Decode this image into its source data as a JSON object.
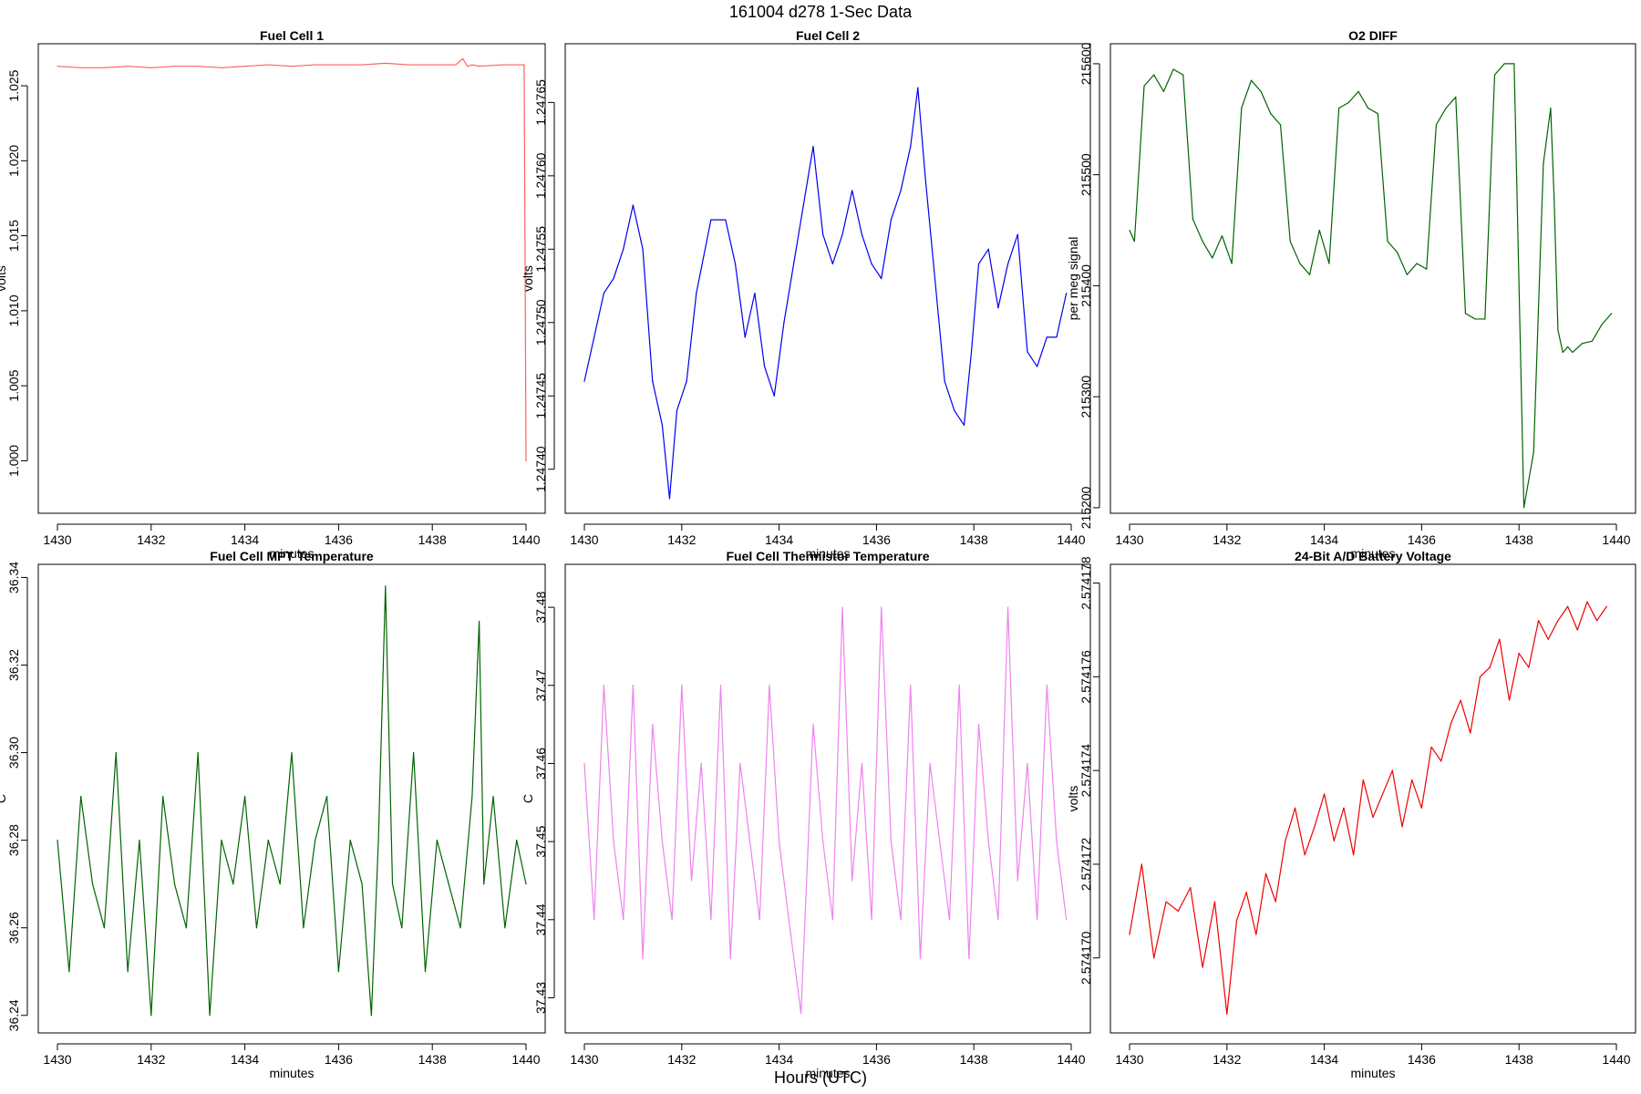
{
  "figure": {
    "title": "161004   d278   1-Sec Data",
    "xlabel": "Hours (UTC)"
  },
  "chart_data": [
    {
      "type": "line",
      "title": "Fuel Cell 1",
      "xlabel": "minutes",
      "ylabel": "volts",
      "color": "#ff6060",
      "xlim": [
        1430,
        1440
      ],
      "ylim": [
        0.9965,
        1.0278
      ],
      "xticks": [
        "1430",
        "1432",
        "1434",
        "1436",
        "1438",
        "1440"
      ],
      "yticks": [
        {
          "v": 1.0,
          "label": "1.000"
        },
        {
          "v": 1.005,
          "label": "1.005"
        },
        {
          "v": 1.01,
          "label": "1.010"
        },
        {
          "v": 1.015,
          "label": "1.015"
        },
        {
          "v": 1.02,
          "label": "1.020"
        },
        {
          "v": 1.025,
          "label": "1.025"
        }
      ],
      "series": [
        {
          "x": [
            1430.0,
            1430.5,
            1431.0,
            1431.5,
            1432.0,
            1432.5,
            1433.0,
            1433.5,
            1434.0,
            1434.5,
            1435.0,
            1435.5,
            1436.0,
            1436.5,
            1437.0,
            1437.5,
            1438.0,
            1438.5,
            1438.65,
            1438.75,
            1438.85,
            1439.0,
            1439.5,
            1439.9,
            1439.93,
            1439.96,
            1440.0
          ],
          "values": [
            1.0263,
            1.0262,
            1.0262,
            1.0263,
            1.0262,
            1.0263,
            1.0263,
            1.0262,
            1.0263,
            1.0264,
            1.0263,
            1.0264,
            1.0264,
            1.0264,
            1.0265,
            1.0264,
            1.0264,
            1.0264,
            1.0268,
            1.0263,
            1.0264,
            1.0263,
            1.0264,
            1.0264,
            1.0264,
            1.0264,
            1.0
          ]
        }
      ]
    },
    {
      "type": "line",
      "title": "Fuel Cell 2",
      "xlabel": "minutes",
      "ylabel": "volts",
      "color": "#0000ee",
      "xlim": [
        1430,
        1440
      ],
      "ylim": [
        1.24737,
        1.24769
      ],
      "xticks": [
        "1430",
        "1432",
        "1434",
        "1436",
        "1438",
        "1440"
      ],
      "yticks": [
        {
          "v": 1.2474,
          "label": "1.24740"
        },
        {
          "v": 1.24745,
          "label": "1.24745"
        },
        {
          "v": 1.2475,
          "label": "1.24750"
        },
        {
          "v": 1.24755,
          "label": "1.24755"
        },
        {
          "v": 1.2476,
          "label": "1.24760"
        },
        {
          "v": 1.24765,
          "label": "1.24765"
        }
      ],
      "series": [
        {
          "x": [
            1430.0,
            1430.2,
            1430.4,
            1430.6,
            1430.8,
            1431.0,
            1431.2,
            1431.4,
            1431.6,
            1431.75,
            1431.9,
            1432.1,
            1432.3,
            1432.6,
            1432.9,
            1433.1,
            1433.3,
            1433.5,
            1433.7,
            1433.9,
            1434.1,
            1434.3,
            1434.5,
            1434.7,
            1434.9,
            1435.1,
            1435.3,
            1435.5,
            1435.7,
            1435.9,
            1436.1,
            1436.3,
            1436.5,
            1436.7,
            1436.85,
            1437.0,
            1437.2,
            1437.4,
            1437.6,
            1437.8,
            1437.95,
            1438.1,
            1438.3,
            1438.5,
            1438.7,
            1438.9,
            1439.1,
            1439.3,
            1439.5,
            1439.7,
            1439.9
          ],
          "values": [
            1.24746,
            1.24749,
            1.24752,
            1.24753,
            1.24755,
            1.24758,
            1.24755,
            1.24746,
            1.24743,
            1.24738,
            1.24744,
            1.24746,
            1.24752,
            1.24757,
            1.24757,
            1.24754,
            1.24749,
            1.24752,
            1.24747,
            1.24745,
            1.2475,
            1.24754,
            1.24758,
            1.24762,
            1.24756,
            1.24754,
            1.24756,
            1.24759,
            1.24756,
            1.24754,
            1.24753,
            1.24757,
            1.24759,
            1.24762,
            1.24766,
            1.2476,
            1.24753,
            1.24746,
            1.24744,
            1.24743,
            1.24748,
            1.24754,
            1.24755,
            1.24751,
            1.24754,
            1.24756,
            1.24748,
            1.24747,
            1.24749,
            1.24749,
            1.24752
          ]
        }
      ]
    },
    {
      "type": "line",
      "title": "O2 DIFF",
      "xlabel": "minutes",
      "ylabel": "per meg signal",
      "color": "#006400",
      "xlim": [
        1430,
        1440
      ],
      "ylim": [
        215195,
        215618
      ],
      "xticks": [
        "1430",
        "1432",
        "1434",
        "1436",
        "1438",
        "1440"
      ],
      "yticks": [
        {
          "v": 215200,
          "label": "215200"
        },
        {
          "v": 215300,
          "label": "215300"
        },
        {
          "v": 215400,
          "label": "215400"
        },
        {
          "v": 215500,
          "label": "215500"
        },
        {
          "v": 215600,
          "label": "215600"
        }
      ],
      "series": [
        {
          "x": [
            1430.0,
            1430.1,
            1430.2,
            1430.3,
            1430.5,
            1430.7,
            1430.9,
            1431.1,
            1431.3,
            1431.5,
            1431.7,
            1431.9,
            1432.1,
            1432.3,
            1432.5,
            1432.7,
            1432.9,
            1433.1,
            1433.3,
            1433.5,
            1433.7,
            1433.9,
            1434.1,
            1434.3,
            1434.5,
            1434.7,
            1434.9,
            1435.1,
            1435.3,
            1435.5,
            1435.7,
            1435.9,
            1436.1,
            1436.3,
            1436.5,
            1436.7,
            1436.9,
            1437.1,
            1437.3,
            1437.5,
            1437.7,
            1437.9,
            1438.1,
            1438.3,
            1438.5,
            1438.65,
            1438.72,
            1438.8,
            1438.9,
            1439.0,
            1439.1,
            1439.3,
            1439.5,
            1439.7,
            1439.9
          ],
          "values": [
            215450,
            215440,
            215510,
            215580,
            215590,
            215575,
            215595,
            215590,
            215460,
            215440,
            215425,
            215445,
            215420,
            215560,
            215585,
            215575,
            215555,
            215545,
            215440,
            215420,
            215410,
            215450,
            215420,
            215560,
            215565,
            215575,
            215560,
            215555,
            215440,
            215430,
            215410,
            215420,
            215415,
            215545,
            215560,
            215570,
            215375,
            215370,
            215370,
            215590,
            215600,
            215600,
            215200,
            215250,
            215510,
            215560,
            215480,
            215360,
            215340,
            215345,
            215340,
            215348,
            215350,
            215365,
            215375
          ]
        }
      ]
    },
    {
      "type": "line",
      "title": "Fuel Cell MPT Temperature",
      "xlabel": "minutes",
      "ylabel": "C",
      "color": "#006400",
      "xlim": [
        1430,
        1440
      ],
      "ylim": [
        36.236,
        36.343
      ],
      "xticks": [
        "1430",
        "1432",
        "1434",
        "1436",
        "1438",
        "1440"
      ],
      "yticks": [
        {
          "v": 36.24,
          "label": "36.24"
        },
        {
          "v": 36.26,
          "label": "36.26"
        },
        {
          "v": 36.28,
          "label": "36.28"
        },
        {
          "v": 36.3,
          "label": "36.30"
        },
        {
          "v": 36.32,
          "label": "36.32"
        },
        {
          "v": 36.34,
          "label": "36.34"
        }
      ],
      "series": [
        {
          "x": [
            1430.0,
            1430.25,
            1430.5,
            1430.75,
            1431.0,
            1431.25,
            1431.5,
            1431.75,
            1432.0,
            1432.25,
            1432.5,
            1432.75,
            1433.0,
            1433.25,
            1433.5,
            1433.75,
            1434.0,
            1434.25,
            1434.5,
            1434.75,
            1435.0,
            1435.25,
            1435.5,
            1435.75,
            1436.0,
            1436.25,
            1436.5,
            1436.7,
            1436.85,
            1437.0,
            1437.15,
            1437.35,
            1437.6,
            1437.85,
            1438.1,
            1438.35,
            1438.6,
            1438.85,
            1439.0,
            1439.1,
            1439.3,
            1439.55,
            1439.8,
            1440.0
          ],
          "values": [
            36.28,
            36.25,
            36.29,
            36.27,
            36.26,
            36.3,
            36.25,
            36.28,
            36.24,
            36.29,
            36.27,
            36.26,
            36.3,
            36.24,
            36.28,
            36.27,
            36.29,
            36.26,
            36.28,
            36.27,
            36.3,
            36.26,
            36.28,
            36.29,
            36.25,
            36.28,
            36.27,
            36.24,
            36.28,
            36.338,
            36.27,
            36.26,
            36.3,
            36.25,
            36.28,
            36.27,
            36.26,
            36.29,
            36.33,
            36.27,
            36.29,
            36.26,
            36.28,
            36.27
          ]
        }
      ]
    },
    {
      "type": "line",
      "title": "Fuel Cell Thermistor Temperature",
      "xlabel": "minutes",
      "ylabel": "C",
      "color": "#ee82ee",
      "xlim": [
        1430,
        1440
      ],
      "ylim": [
        37.4255,
        37.4855
      ],
      "xticks": [
        "1430",
        "1432",
        "1434",
        "1436",
        "1438",
        "1440"
      ],
      "yticks": [
        {
          "v": 37.43,
          "label": "37.43"
        },
        {
          "v": 37.44,
          "label": "37.44"
        },
        {
          "v": 37.45,
          "label": "37.45"
        },
        {
          "v": 37.46,
          "label": "37.46"
        },
        {
          "v": 37.47,
          "label": "37.47"
        },
        {
          "v": 37.48,
          "label": "37.48"
        }
      ],
      "series": [
        {
          "x": [
            1430.0,
            1430.2,
            1430.4,
            1430.6,
            1430.8,
            1431.0,
            1431.2,
            1431.4,
            1431.6,
            1431.8,
            1432.0,
            1432.2,
            1432.4,
            1432.6,
            1432.8,
            1433.0,
            1433.2,
            1433.4,
            1433.6,
            1433.8,
            1434.0,
            1434.2,
            1434.45,
            1434.7,
            1434.9,
            1435.1,
            1435.3,
            1435.5,
            1435.7,
            1435.9,
            1436.1,
            1436.3,
            1436.5,
            1436.7,
            1436.9,
            1437.1,
            1437.3,
            1437.5,
            1437.7,
            1437.9,
            1438.1,
            1438.3,
            1438.5,
            1438.7,
            1438.9,
            1439.1,
            1439.3,
            1439.5,
            1439.7,
            1439.9
          ],
          "values": [
            37.46,
            37.44,
            37.47,
            37.45,
            37.44,
            37.47,
            37.435,
            37.465,
            37.45,
            37.44,
            37.47,
            37.445,
            37.46,
            37.44,
            37.47,
            37.435,
            37.46,
            37.45,
            37.44,
            37.47,
            37.45,
            37.44,
            37.428,
            37.465,
            37.45,
            37.44,
            37.48,
            37.445,
            37.46,
            37.44,
            37.48,
            37.45,
            37.44,
            37.47,
            37.435,
            37.46,
            37.45,
            37.44,
            37.47,
            37.435,
            37.465,
            37.45,
            37.44,
            37.48,
            37.445,
            37.46,
            37.44,
            37.47,
            37.45,
            37.44
          ]
        }
      ]
    },
    {
      "type": "line",
      "title": "24-Bit A/D Battery Voltage",
      "xlabel": "minutes",
      "ylabel": "volts",
      "color": "#ee0000",
      "xlim": [
        1430,
        1440
      ],
      "ylim": [
        2.5741684,
        2.5741784
      ],
      "xticks": [
        "1430",
        "1432",
        "1434",
        "1436",
        "1438",
        "1440"
      ],
      "yticks": [
        {
          "v": 2.57417,
          "label": "2.574170"
        },
        {
          "v": 2.574172,
          "label": "2.574172"
        },
        {
          "v": 2.574174,
          "label": "2.574174"
        },
        {
          "v": 2.574176,
          "label": "2.574176"
        },
        {
          "v": 2.574178,
          "label": "2.574178"
        }
      ],
      "series": [
        {
          "x": [
            1430.0,
            1430.25,
            1430.5,
            1430.75,
            1431.0,
            1431.25,
            1431.5,
            1431.75,
            1432.0,
            1432.2,
            1432.4,
            1432.6,
            1432.8,
            1433.0,
            1433.2,
            1433.4,
            1433.6,
            1433.8,
            1434.0,
            1434.2,
            1434.4,
            1434.6,
            1434.8,
            1435.0,
            1435.2,
            1435.4,
            1435.6,
            1435.8,
            1436.0,
            1436.2,
            1436.4,
            1436.6,
            1436.8,
            1437.0,
            1437.2,
            1437.4,
            1437.6,
            1437.8,
            1438.0,
            1438.2,
            1438.4,
            1438.6,
            1438.8,
            1439.0,
            1439.2,
            1439.4,
            1439.6,
            1439.8
          ],
          "values": [
            2.5741705,
            2.574172,
            2.57417,
            2.5741712,
            2.574171,
            2.5741715,
            2.5741698,
            2.5741712,
            2.5741688,
            2.5741708,
            2.5741714,
            2.5741705,
            2.5741718,
            2.5741712,
            2.5741725,
            2.5741732,
            2.5741722,
            2.5741728,
            2.5741735,
            2.5741725,
            2.5741732,
            2.5741722,
            2.5741738,
            2.574173,
            2.5741735,
            2.574174,
            2.5741728,
            2.5741738,
            2.5741732,
            2.5741745,
            2.5741742,
            2.574175,
            2.5741755,
            2.5741748,
            2.574176,
            2.5741762,
            2.5741768,
            2.5741755,
            2.5741765,
            2.5741762,
            2.5741772,
            2.5741768,
            2.5741772,
            2.5741775,
            2.574177,
            2.5741776,
            2.5741772,
            2.5741775
          ]
        }
      ]
    }
  ]
}
